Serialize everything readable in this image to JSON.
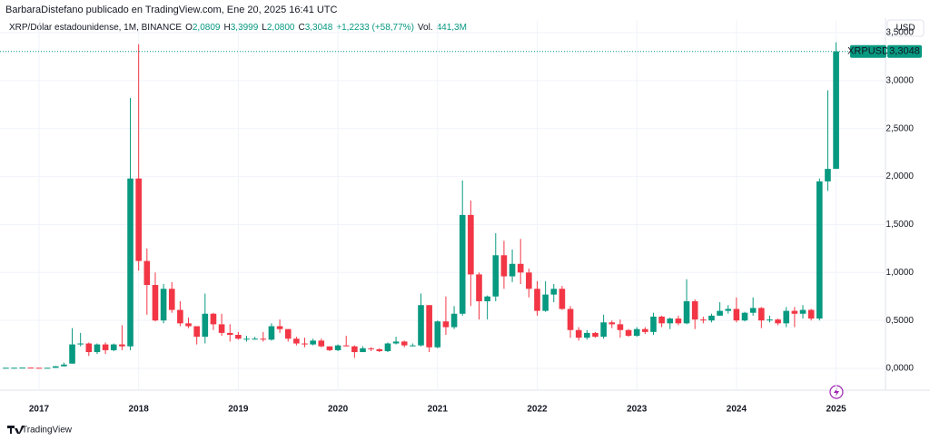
{
  "chart_data": {
    "type": "candlestick",
    "header": "BarbaraDistefano publicado en TradingView.com, Ene 20, 2025 16:41 UTC",
    "instrument": "XRP/Dólar estadounidense, 1M, BINANCE",
    "ohlc_legend": [
      {
        "letter": "O",
        "text": "2,0809"
      },
      {
        "letter": "H",
        "text": "3,3999"
      },
      {
        "letter": "L",
        "text": "2,0800"
      },
      {
        "letter": "C",
        "text": "3,3048"
      }
    ],
    "change": "+1,2233 (+58,77%)",
    "volume_label": "Vol.",
    "volume": "441,3M",
    "currency": "USD",
    "symbol": "XRPUSD",
    "last_price_label": "3,3048",
    "brand": "TradingView",
    "up_color": "#089981",
    "down_color": "#f23645",
    "grid": true,
    "categories": [
      null,
      null,
      null,
      null,
      "2017",
      null,
      null,
      null,
      null,
      null,
      null,
      null,
      null,
      null,
      null,
      null,
      "2018",
      null,
      null,
      null,
      null,
      null,
      null,
      null,
      null,
      null,
      null,
      null,
      "2019",
      null,
      null,
      null,
      null,
      null,
      null,
      null,
      null,
      null,
      null,
      null,
      "2020",
      null,
      null,
      null,
      null,
      null,
      null,
      null,
      null,
      null,
      null,
      null,
      "2021",
      null,
      null,
      null,
      null,
      null,
      null,
      null,
      null,
      null,
      null,
      null,
      "2022",
      null,
      null,
      null,
      null,
      null,
      null,
      null,
      null,
      null,
      null,
      null,
      "2023",
      null,
      null,
      null,
      null,
      null,
      null,
      null,
      null,
      null,
      null,
      null,
      "2024",
      null,
      null,
      null,
      null,
      null,
      null,
      null,
      null,
      null,
      null,
      null,
      "2025"
    ],
    "open": [
      0.0065,
      0.0068,
      0.007,
      0.0085,
      0.0065,
      0.0063,
      0.0065,
      0.022,
      0.05,
      0.25,
      0.26,
      0.17,
      0.25,
      0.19,
      0.25,
      0.23,
      1.98,
      1.12,
      0.87,
      0.5,
      0.83,
      0.61,
      0.47,
      0.44,
      0.33,
      0.57,
      0.46,
      0.37,
      0.35,
      0.31,
      0.31,
      0.31,
      0.3,
      0.44,
      0.41,
      0.31,
      0.26,
      0.25,
      0.29,
      0.23,
      0.19,
      0.24,
      0.23,
      0.17,
      0.21,
      0.2,
      0.18,
      0.26,
      0.28,
      0.24,
      0.24,
      0.66,
      0.22,
      0.49,
      0.43,
      0.57,
      1.6,
      0.98,
      0.7,
      0.75,
      1.18,
      0.96,
      1.09,
      1.0,
      0.83,
      0.6,
      0.77,
      0.83,
      0.62,
      0.4,
      0.32,
      0.37,
      0.33,
      0.48,
      0.46,
      0.4,
      0.34,
      0.41,
      0.38,
      0.54,
      0.47,
      0.52,
      0.47,
      0.7,
      0.51,
      0.5,
      0.55,
      0.6,
      0.62,
      0.5,
      0.58,
      0.63,
      0.5,
      0.51,
      0.47,
      0.6,
      0.57,
      0.61,
      0.52,
      1.95,
      2.0809
    ],
    "high": [
      0.0075,
      0.008,
      0.0095,
      0.009,
      0.007,
      0.0068,
      0.025,
      0.06,
      0.42,
      0.37,
      0.27,
      0.26,
      0.27,
      0.26,
      0.45,
      2.82,
      3.38,
      1.25,
      1.0,
      0.88,
      0.9,
      0.7,
      0.53,
      0.44,
      0.78,
      0.58,
      0.57,
      0.46,
      0.38,
      0.34,
      0.33,
      0.38,
      0.47,
      0.51,
      0.41,
      0.33,
      0.32,
      0.31,
      0.31,
      0.23,
      0.25,
      0.34,
      0.24,
      0.23,
      0.22,
      0.21,
      0.27,
      0.33,
      0.29,
      0.26,
      0.78,
      0.66,
      0.5,
      0.75,
      0.65,
      1.96,
      1.75,
      1.0,
      0.76,
      1.41,
      1.33,
      1.24,
      1.35,
      1.04,
      0.91,
      0.91,
      0.88,
      0.86,
      0.65,
      0.43,
      0.4,
      0.38,
      0.56,
      0.5,
      0.51,
      0.41,
      0.43,
      0.43,
      0.58,
      0.55,
      0.53,
      0.55,
      0.93,
      0.72,
      0.54,
      0.57,
      0.69,
      0.66,
      0.74,
      0.59,
      0.74,
      0.64,
      0.55,
      0.52,
      0.64,
      0.64,
      0.66,
      0.62,
      1.98,
      2.9,
      3.3999
    ],
    "low": [
      0.006,
      0.0065,
      0.0068,
      0.0062,
      0.0058,
      0.0058,
      0.0063,
      0.02,
      0.05,
      0.23,
      0.13,
      0.15,
      0.15,
      0.18,
      0.19,
      0.19,
      1.02,
      0.56,
      0.49,
      0.47,
      0.58,
      0.44,
      0.42,
      0.25,
      0.26,
      0.4,
      0.34,
      0.28,
      0.3,
      0.28,
      0.3,
      0.28,
      0.29,
      0.37,
      0.28,
      0.24,
      0.22,
      0.24,
      0.22,
      0.18,
      0.18,
      0.23,
      0.11,
      0.17,
      0.18,
      0.17,
      0.17,
      0.25,
      0.22,
      0.23,
      0.23,
      0.17,
      0.21,
      0.35,
      0.41,
      0.55,
      0.65,
      0.51,
      0.51,
      0.7,
      0.83,
      0.9,
      0.88,
      0.74,
      0.55,
      0.59,
      0.69,
      0.61,
      0.32,
      0.29,
      0.3,
      0.32,
      0.31,
      0.42,
      0.32,
      0.33,
      0.33,
      0.36,
      0.35,
      0.43,
      0.41,
      0.45,
      0.46,
      0.41,
      0.47,
      0.48,
      0.55,
      0.57,
      0.48,
      0.49,
      0.55,
      0.42,
      0.48,
      0.45,
      0.43,
      0.43,
      0.52,
      0.5,
      0.5,
      1.85,
      2.08
    ],
    "close": [
      0.0068,
      0.007,
      0.0085,
      0.0065,
      0.0063,
      0.0065,
      0.022,
      0.04,
      0.25,
      0.26,
      0.17,
      0.25,
      0.19,
      0.25,
      0.23,
      1.98,
      1.12,
      0.87,
      0.5,
      0.83,
      0.61,
      0.47,
      0.44,
      0.33,
      0.57,
      0.46,
      0.37,
      0.35,
      0.31,
      0.31,
      0.31,
      0.3,
      0.44,
      0.41,
      0.31,
      0.26,
      0.25,
      0.29,
      0.23,
      0.19,
      0.24,
      0.23,
      0.17,
      0.21,
      0.2,
      0.18,
      0.26,
      0.28,
      0.24,
      0.24,
      0.66,
      0.22,
      0.49,
      0.43,
      0.57,
      1.6,
      0.98,
      0.7,
      0.75,
      1.18,
      0.96,
      1.09,
      1.0,
      0.83,
      0.6,
      0.77,
      0.83,
      0.62,
      0.4,
      0.32,
      0.37,
      0.33,
      0.48,
      0.46,
      0.4,
      0.34,
      0.41,
      0.38,
      0.54,
      0.47,
      0.52,
      0.47,
      0.7,
      0.51,
      0.5,
      0.55,
      0.6,
      0.62,
      0.5,
      0.58,
      0.63,
      0.5,
      0.51,
      0.47,
      0.6,
      0.57,
      0.61,
      0.52,
      1.95,
      2.08,
      3.3048
    ],
    "ylim": [
      -0.227,
      3.633
    ],
    "yticks": [
      {
        "value": 0,
        "label": "0,0000"
      },
      {
        "value": 0.5,
        "label": "0,5000"
      },
      {
        "value": 1,
        "label": "1,0000"
      },
      {
        "value": 1.5,
        "label": "1,5000"
      },
      {
        "value": 2,
        "label": "2,0000"
      },
      {
        "value": 2.5,
        "label": "2,5000"
      },
      {
        "value": 3,
        "label": "3,0000"
      },
      {
        "value": 3.5,
        "label": "3,5000"
      }
    ]
  }
}
